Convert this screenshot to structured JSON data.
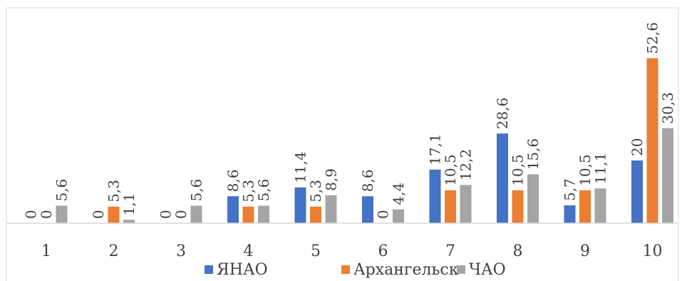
{
  "chart_data": {
    "type": "bar",
    "categories": [
      "1",
      "2",
      "3",
      "4",
      "5",
      "6",
      "7",
      "8",
      "9",
      "10"
    ],
    "series": [
      {
        "name": "ЯНАО",
        "color": "#4472C4",
        "values": [
          0,
          0,
          0,
          8.6,
          11.4,
          8.6,
          17.1,
          28.6,
          5.7,
          20
        ],
        "labels": [
          "0",
          "0",
          "0",
          "8,6",
          "11,4",
          "8,6",
          "17,1",
          "28,6",
          "5,7",
          "20"
        ]
      },
      {
        "name": "Архангельск",
        "color": "#ED7D31",
        "values": [
          0,
          5.3,
          0,
          5.3,
          5.3,
          0,
          10.5,
          10.5,
          10.5,
          52.6
        ],
        "labels": [
          "0",
          "5,3",
          "0",
          "5,3",
          "5,3",
          "0",
          "10,5",
          "10,5",
          "10,5",
          "52,6"
        ]
      },
      {
        "name": "ЧАО",
        "color": "#A5A5A5",
        "values": [
          5.6,
          1.1,
          5.6,
          5.6,
          8.9,
          4.4,
          12.2,
          15.6,
          11.1,
          30.3
        ],
        "labels": [
          "5,6",
          "1,1",
          "5,6",
          "5,6",
          "8,9",
          "4,4",
          "12,2",
          "15,6",
          "11,1",
          "30,3"
        ]
      }
    ],
    "title": "",
    "xlabel": "",
    "ylabel": "",
    "ylim": [
      0,
      55
    ],
    "grid": false,
    "legend": "bottom",
    "axis_color": "#D9D9D9"
  }
}
